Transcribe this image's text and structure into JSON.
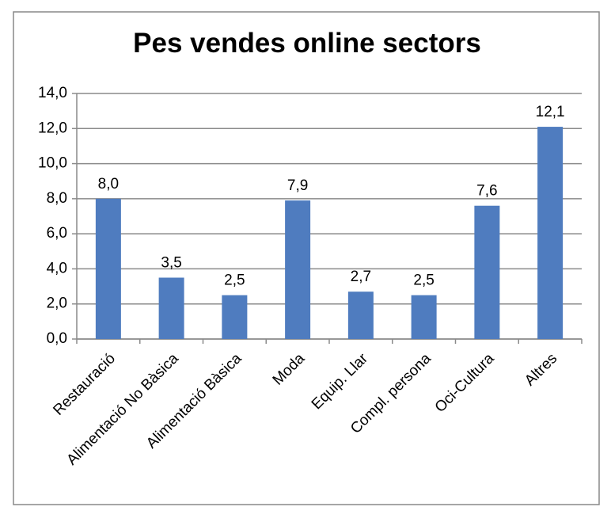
{
  "chart_data": {
    "type": "bar",
    "title": "Pes vendes online sectors",
    "categories": [
      "Restauració",
      "Alimentació No Bàsica",
      "Alimentació Bàsica",
      "Moda",
      "Equip. Llar",
      "Compl. persona",
      "Oci-Cultura",
      "Altres"
    ],
    "values": [
      8.0,
      3.5,
      2.5,
      7.9,
      2.7,
      2.5,
      7.6,
      12.1
    ],
    "value_labels": [
      "8,0",
      "3,5",
      "2,5",
      "7,9",
      "2,7",
      "2,5",
      "7,6",
      "12,1"
    ],
    "color": "#4f7cbf",
    "ylim": [
      0,
      14
    ],
    "yticks": [
      {
        "value": 0,
        "label": "0,0"
      },
      {
        "value": 2,
        "label": "2,0"
      },
      {
        "value": 4,
        "label": "4,0"
      },
      {
        "value": 6,
        "label": "6,0"
      },
      {
        "value": 8,
        "label": "8,0"
      },
      {
        "value": 10,
        "label": "10,0"
      },
      {
        "value": 12,
        "label": "12,0"
      },
      {
        "value": 14,
        "label": "14,0"
      }
    ],
    "grid": true
  }
}
